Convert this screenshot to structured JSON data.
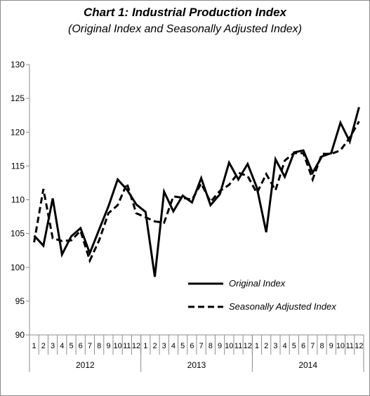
{
  "chart_data": {
    "type": "line",
    "title": "Chart 1: Industrial Production Index",
    "subtitle": "(Original Index and Seasonally Adjusted Index)",
    "xlabel": "",
    "ylabel": "",
    "ylim": [
      90,
      130
    ],
    "yticks": [
      "90",
      "95",
      "100",
      "105",
      "110",
      "115",
      "120",
      "125",
      "130"
    ],
    "month_labels": [
      "1",
      "2",
      "3",
      "4",
      "5",
      "6",
      "7",
      "8",
      "9",
      "10",
      "11",
      "12",
      "1",
      "2",
      "3",
      "4",
      "5",
      "6",
      "7",
      "8",
      "9",
      "10",
      "11",
      "12",
      "1",
      "2",
      "3",
      "4",
      "5",
      "6",
      "7",
      "8",
      "9",
      "10",
      "11",
      "12"
    ],
    "year_labels": [
      "2012",
      "2013",
      "2014"
    ],
    "grid": false,
    "legend_position": "right-middle",
    "series": [
      {
        "name": "Original Index",
        "style": "solid",
        "color": "#000000",
        "values": [
          104.7,
          103.2,
          110.2,
          101.9,
          104.6,
          105.8,
          102.1,
          105.6,
          109.0,
          113.0,
          111.5,
          109.3,
          108.2,
          98.6,
          111.2,
          108.3,
          110.6,
          109.6,
          113.2,
          109.2,
          110.8,
          115.5,
          113.0,
          115.3,
          111.8,
          105.2,
          116.0,
          113.4,
          117.0,
          117.3,
          114.0,
          116.4,
          116.9,
          121.4,
          118.6,
          123.7
        ]
      },
      {
        "name": "Seasonally Adjusted Index",
        "style": "dashed",
        "color": "#000000",
        "values": [
          103.7,
          111.6,
          104.3,
          103.9,
          104.0,
          105.4,
          101.0,
          104.0,
          108.0,
          109.2,
          112.4,
          108.0,
          107.4,
          106.8,
          106.6,
          110.5,
          110.3,
          110.0,
          112.4,
          109.7,
          111.3,
          112.2,
          114.0,
          113.5,
          111.0,
          113.8,
          111.4,
          115.8,
          116.9,
          116.9,
          113.0,
          116.8,
          116.8,
          117.3,
          119.2,
          121.6
        ]
      }
    ]
  }
}
